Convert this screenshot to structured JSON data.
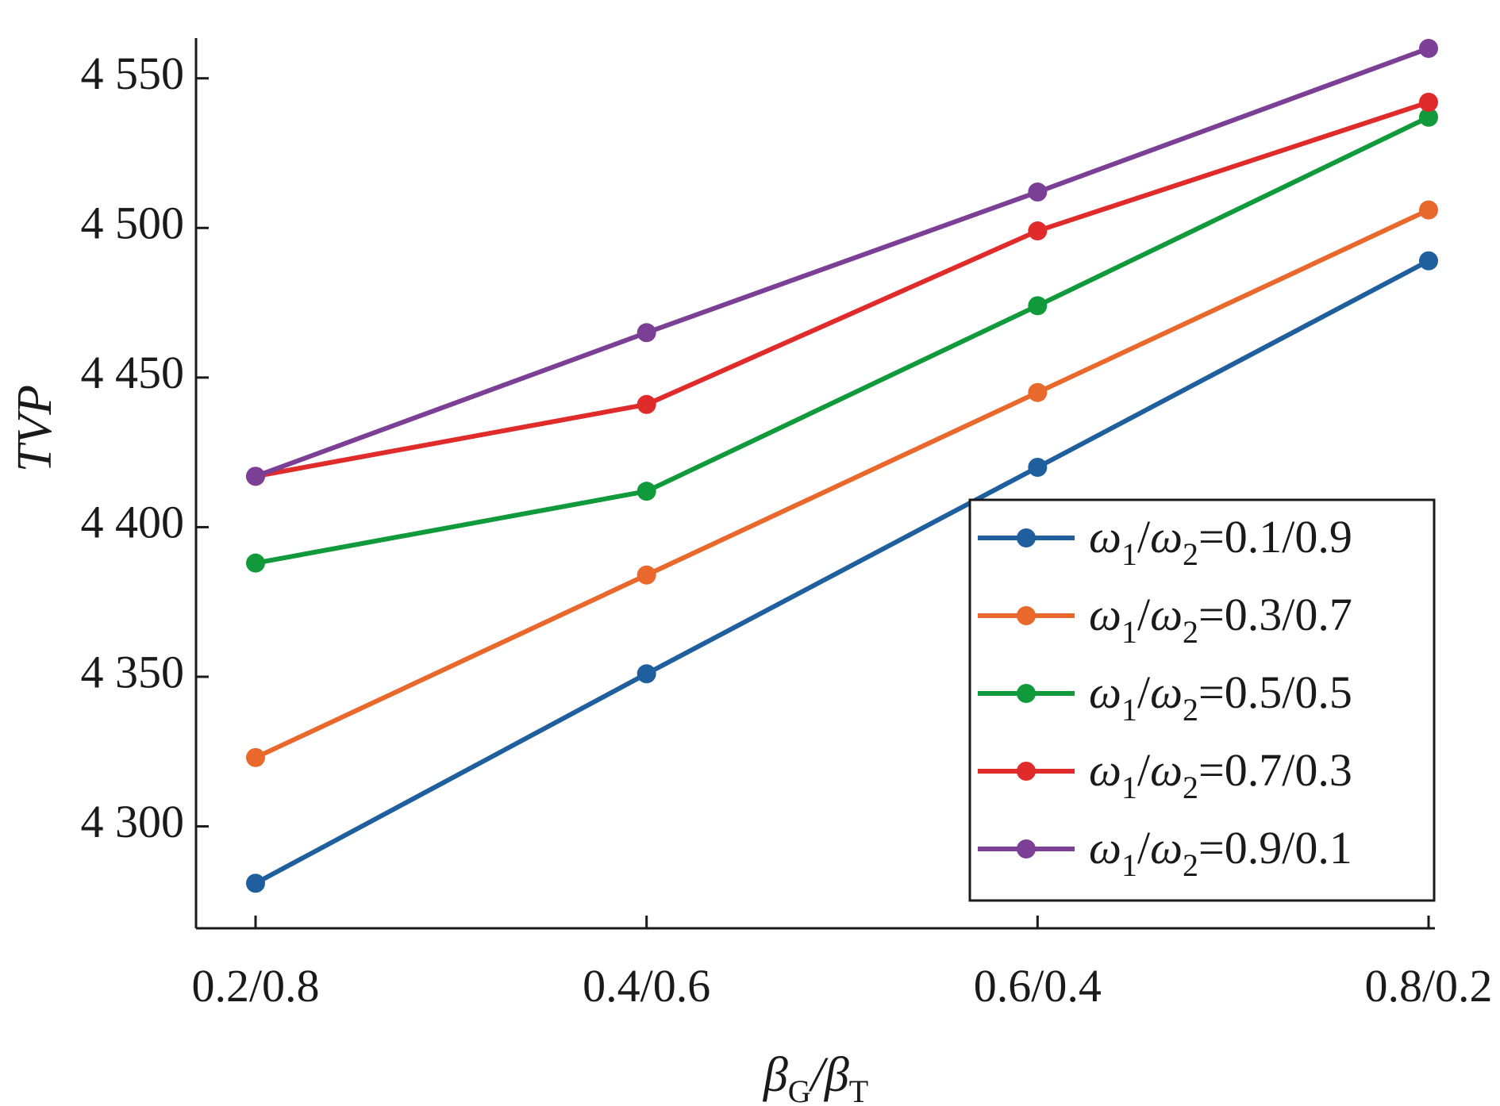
{
  "chart_data": {
    "type": "line",
    "title": "",
    "xlabel": "βG/βT",
    "ylabel": "TVP",
    "categories": [
      "0.2/0.8",
      "0.4/0.6",
      "0.6/0.4",
      "0.8/0.2"
    ],
    "ylim": [
      4268,
      4560
    ],
    "yticks": [
      4300,
      4350,
      4400,
      4450,
      4500,
      4550
    ],
    "ytick_labels": [
      "4 300",
      "4 350",
      "4 400",
      "4 450",
      "4 500",
      "4 550"
    ],
    "grid": false,
    "legend_position": "bottom-right",
    "series": [
      {
        "name": "ω1/ω2=0.1/0.9",
        "ratio": "0.1/0.9",
        "color": "#1f5f9e",
        "values": [
          4281,
          4351,
          4420,
          4489
        ]
      },
      {
        "name": "ω1/ω2=0.3/0.7",
        "ratio": "0.3/0.7",
        "color": "#e9692c",
        "values": [
          4323,
          4384,
          4445,
          4506
        ]
      },
      {
        "name": "ω1/ω2=0.5/0.5",
        "ratio": "0.5/0.5",
        "color": "#119a3b",
        "values": [
          4388,
          4412,
          4474,
          4537
        ]
      },
      {
        "name": "ω1/ω2=0.7/0.3",
        "ratio": "0.7/0.3",
        "color": "#e02b2b",
        "values": [
          4417,
          4441,
          4499,
          4542
        ]
      },
      {
        "name": "ω1/ω2=0.9/0.1",
        "ratio": "0.9/0.1",
        "color": "#7b3f96",
        "values": [
          4417,
          4465,
          4512,
          4560
        ]
      }
    ]
  }
}
